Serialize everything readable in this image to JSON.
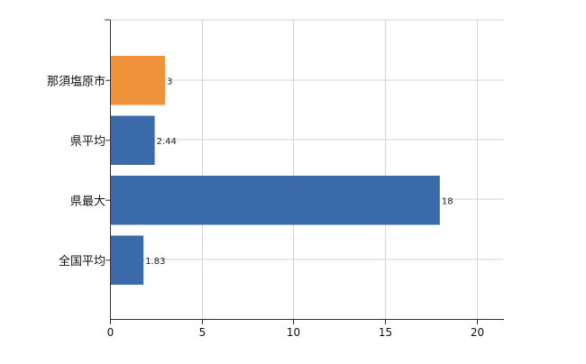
{
  "chart_data": {
    "type": "bar",
    "orientation": "horizontal",
    "categories": [
      "那須塩原市",
      "県平均",
      "県最大",
      "全国平均"
    ],
    "values": [
      3,
      2.44,
      18,
      1.83
    ],
    "value_labels": [
      "3",
      "2.44",
      "18",
      "1.83"
    ],
    "bar_colors": [
      "#F0923A",
      "#3A6AAA",
      "#3A6AAA",
      "#3A6AAA"
    ],
    "xlim": [
      0,
      21.5
    ],
    "xticks": [
      0,
      5,
      10,
      15,
      20
    ],
    "xtick_labels": [
      "0",
      "5",
      "10",
      "15",
      "20"
    ],
    "grid": true,
    "title": "",
    "xlabel": "",
    "ylabel": ""
  }
}
